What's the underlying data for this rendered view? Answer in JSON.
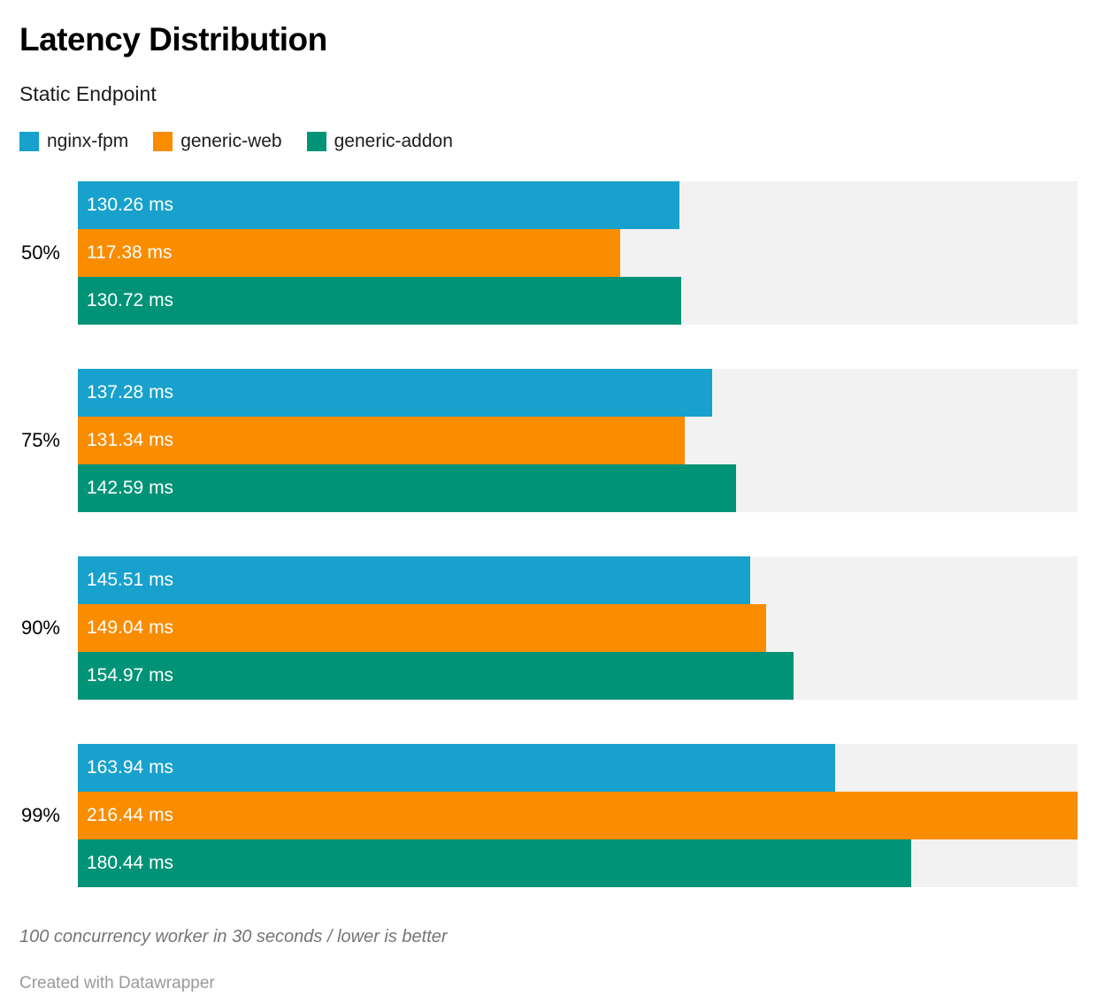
{
  "header": {
    "title": "Latency Distribution",
    "subtitle": "Static Endpoint"
  },
  "chart_data": {
    "type": "bar",
    "orientation": "horizontal",
    "title": "Latency Distribution",
    "subtitle": "Static Endpoint",
    "categories": [
      "50%",
      "75%",
      "90%",
      "99%"
    ],
    "series": [
      {
        "name": "nginx-fpm",
        "color": "#18a1cd",
        "values": [
          130.26,
          137.28,
          145.51,
          163.94
        ]
      },
      {
        "name": "generic-web",
        "color": "#fa8c00",
        "values": [
          117.38,
          131.34,
          149.04,
          216.44
        ]
      },
      {
        "name": "generic-addon",
        "color": "#009377",
        "values": [
          130.72,
          142.59,
          154.97,
          180.44
        ]
      }
    ],
    "value_suffix": " ms",
    "value_decimals": 2,
    "xlim": [
      0,
      216.44
    ],
    "grid": false,
    "legend_position": "top",
    "track_color": "#f2f2f2",
    "bar_label_color": "#ffffff"
  },
  "footer": {
    "footnote": "100 concurrency worker in 30 seconds / lower is better",
    "attribution": "Created with Datawrapper"
  }
}
